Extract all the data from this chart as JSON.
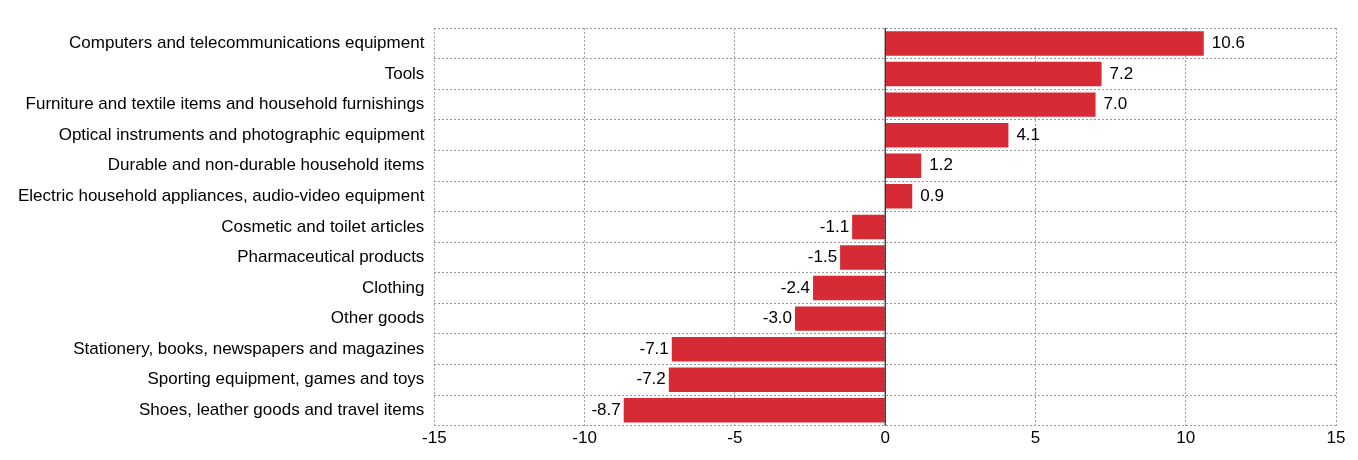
{
  "chart_data": {
    "type": "bar",
    "orientation": "horizontal",
    "categories": [
      "Computers and telecommunications equipment",
      "Tools",
      "Furniture and textile items and household furnishings",
      "Optical instruments and photographic equipment",
      "Durable and non-durable household items",
      "Electric household appliances, audio-video equipment",
      "Cosmetic and toilet articles",
      "Pharmaceutical products",
      "Clothing",
      "Other goods",
      "Stationery, books, newspapers and magazines",
      "Sporting equipment, games and toys",
      "Shoes, leather goods and travel items"
    ],
    "values": [
      10.6,
      7.2,
      7.0,
      4.1,
      1.2,
      0.9,
      -1.1,
      -1.5,
      -2.4,
      -3.0,
      -7.1,
      -7.2,
      -8.7
    ],
    "value_labels": [
      "10.6",
      "7.2",
      "7.0",
      "4.1",
      "1.2",
      "0.9",
      "-1.1",
      "-1.5",
      "-2.4",
      "-3.0",
      "-7.1",
      "-7.2",
      "-8.7"
    ],
    "color": "#d62a35",
    "xlim": [
      -15,
      15
    ],
    "xticks": [
      -15,
      -10,
      -5,
      0,
      5,
      10,
      15
    ],
    "grid": true,
    "legend": false
  }
}
